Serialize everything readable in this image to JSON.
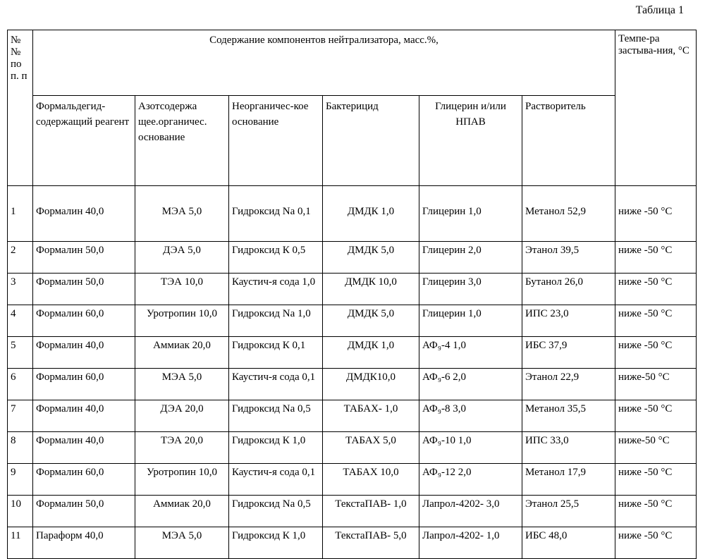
{
  "caption": "Таблица 1",
  "headers": {
    "num": "№ № по п. п",
    "composition": "Содержание компонентов нейтрализатора, масс.%,",
    "temperature": "Темпе-ра застыва-ния, °С",
    "columns": [
      "Формальдегид-содержащий реагент",
      "Азотсодержа щее.органичес. основание",
      "Неорганичес-кое основание",
      "Бактерицид",
      "Глицерин и/или НПАВ",
      "Растворитель"
    ]
  },
  "rows": [
    {
      "n": "1",
      "formal": "Формалин 40,0",
      "nitro": "МЭА 5,0",
      "inorg": "Гидроксид Na 0,1",
      "bact": "ДМДК 1,0",
      "glyc": "Глицерин 1,0",
      "solv": "Метанол 52,9",
      "temp": "ниже -50 °С"
    },
    {
      "n": "2",
      "formal": "Формалин 50,0",
      "nitro": "ДЭА 5,0",
      "inorg": "Гидроксид К 0,5",
      "bact": "ДМДК 5,0",
      "glyc": "Глицерин 2,0",
      "solv": "Этанол 39,5",
      "temp": "ниже -50 °С"
    },
    {
      "n": "3",
      "formal": "Формалин 50,0",
      "nitro": "ТЭА 10,0",
      "inorg": "Каустич-я сода 1,0",
      "bact": "ДМДК 10,0",
      "glyc": "Глицерин 3,0",
      "solv": "Бутанол 26,0",
      "temp": "ниже -50 °С"
    },
    {
      "n": "4",
      "formal": "Формалин 60,0",
      "nitro": "Уротропин 10,0",
      "inorg": "Гидроксид Na 1,0",
      "bact": "ДМДК 5,0",
      "glyc": "Глицерин 1,0",
      "solv": "ИПС 23,0",
      "temp": "ниже -50 °С"
    },
    {
      "n": "5",
      "formal": "Формалин 40,0",
      "nitro": "Аммиак 20,0",
      "inorg": "Гидроксид К 0,1",
      "bact": "ДМДК 1,0",
      "glyc": "АФ₉-4 1,0",
      "solv": "ИБС 37,9",
      "temp": "ниже -50 °С"
    },
    {
      "n": "6",
      "formal": "Формалин 60,0",
      "nitro": "МЭА 5,0",
      "inorg": "Каустич-я сода 0,1",
      "bact": "ДМДК10,0",
      "glyc": "АФ₉-6 2,0",
      "solv": "Этанол 22,9",
      "temp": "ниже-50 °С"
    },
    {
      "n": "7",
      "formal": "Формалин 40,0",
      "nitro": "ДЭА 20,0",
      "inorg": "Гидроксид Na 0,5",
      "bact": "ТАБАХ- 1,0",
      "glyc": "АФ₉-8 3,0",
      "solv": "Метанол 35,5",
      "temp": "ниже -50 °С"
    },
    {
      "n": "8",
      "formal": "Формалин 40,0",
      "nitro": "ТЭА 20,0",
      "inorg": "Гидроксид К 1,0",
      "bact": "ТАБАХ 5,0",
      "glyc": "АФ₉-10 1,0",
      "solv": "ИПС 33,0",
      "temp": "ниже-50 °С"
    },
    {
      "n": "9",
      "formal": "Формалин 60,0",
      "nitro": "Уротропин 10,0",
      "inorg": "Каустич-я сода 0,1",
      "bact": "ТАБАХ 10,0",
      "glyc": "АФ₉-12 2,0",
      "solv": "Метанол 17,9",
      "temp": "ниже -50 °С"
    },
    {
      "n": "10",
      "formal": "Формалин 50,0",
      "nitro": "Аммиак 20,0",
      "inorg": "Гидроксид Na 0,5",
      "bact": "ТекстаПАВ- 1,0",
      "glyc": "Лапрол-4202- 3,0",
      "solv": "Этанол 25,5",
      "temp": "ниже -50 °С"
    },
    {
      "n": "11",
      "formal": "Параформ 40,0",
      "nitro": "МЭА 5,0",
      "inorg": "Гидроксид К 1,0",
      "bact": "ТекстаПАВ- 5,0",
      "glyc": "Лапрол-4202- 1,0",
      "solv": "ИБС 48,0",
      "temp": "ниже -50 °С"
    }
  ]
}
